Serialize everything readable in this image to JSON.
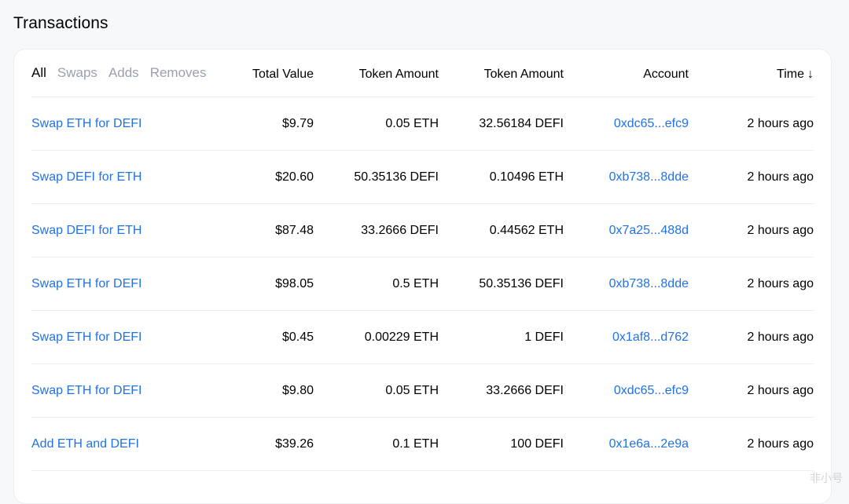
{
  "page": {
    "title": "Transactions"
  },
  "filters": [
    {
      "label": "All",
      "active": true
    },
    {
      "label": "Swaps",
      "active": false
    },
    {
      "label": "Adds",
      "active": false
    },
    {
      "label": "Removes",
      "active": false
    }
  ],
  "columns": {
    "total_value": "Total Value",
    "token_amount_1": "Token Amount",
    "token_amount_2": "Token Amount",
    "account": "Account",
    "time": "Time",
    "time_sort_icon": "arrow-down-icon"
  },
  "rows": [
    {
      "desc": "Swap ETH for DEFI",
      "total": "$9.79",
      "t1": "0.05 ETH",
      "t2": "32.56184 DEFI",
      "account": "0xdc65...efc9",
      "time": "2 hours ago"
    },
    {
      "desc": "Swap DEFI for ETH",
      "total": "$20.60",
      "t1": "50.35136 DEFI",
      "t2": "0.10496 ETH",
      "account": "0xb738...8dde",
      "time": "2 hours ago"
    },
    {
      "desc": "Swap DEFI for ETH",
      "total": "$87.48",
      "t1": "33.2666 DEFI",
      "t2": "0.44562 ETH",
      "account": "0x7a25...488d",
      "time": "2 hours ago"
    },
    {
      "desc": "Swap ETH for DEFI",
      "total": "$98.05",
      "t1": "0.5 ETH",
      "t2": "50.35136 DEFI",
      "account": "0xb738...8dde",
      "time": "2 hours ago"
    },
    {
      "desc": "Swap ETH for DEFI",
      "total": "$0.45",
      "t1": "0.00229 ETH",
      "t2": "1 DEFI",
      "account": "0x1af8...d762",
      "time": "2 hours ago"
    },
    {
      "desc": "Swap ETH for DEFI",
      "total": "$9.80",
      "t1": "0.05 ETH",
      "t2": "33.2666 DEFI",
      "account": "0xdc65...efc9",
      "time": "2 hours ago"
    },
    {
      "desc": "Add ETH and DEFI",
      "total": "$39.26",
      "t1": "0.1 ETH",
      "t2": "100 DEFI",
      "account": "0x1e6a...2e9a",
      "time": "2 hours ago"
    }
  ],
  "colors": {
    "link": "#2172e5",
    "inactive_tab": "#9aa0b0",
    "background": "#f7f8fa",
    "card": "#ffffff"
  },
  "watermark": "非小号"
}
